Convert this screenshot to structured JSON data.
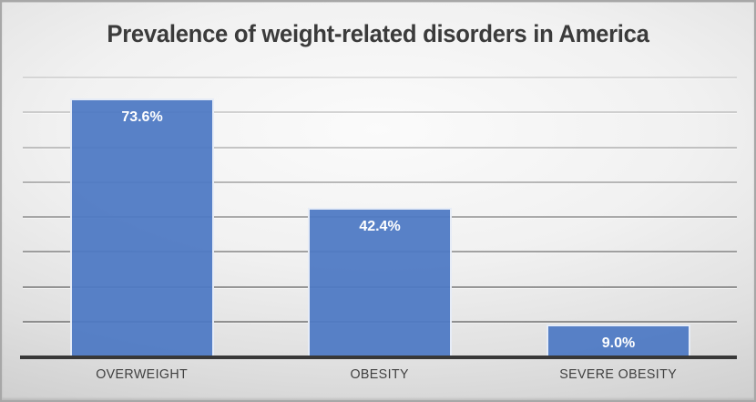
{
  "chart_data": {
    "type": "bar",
    "title": "Prevalence of weight-related disorders in America",
    "categories": [
      "OVERWEIGHT",
      "OBESITY",
      "SEVERE OBESITY"
    ],
    "values": [
      73.6,
      42.4,
      9.0
    ],
    "data_labels": [
      "73.6%",
      "42.4%",
      "9.0%"
    ],
    "xlabel": "",
    "ylabel": "",
    "ylim": [
      0,
      80
    ],
    "gridline_step": 10,
    "gridlines_visible": true,
    "y_axis_tick_labels_visible": false,
    "legend": "none",
    "colors": {
      "bar_fill": "#4E79C4",
      "bar_border": "#FFFFFF",
      "data_label_text": "#FFFFFF",
      "title_text": "#3B3B3B",
      "category_text": "#3F3F3F",
      "axis_line": "#383838",
      "background_center": "#FBFBFB",
      "background_edge": "#C0C0C0"
    }
  }
}
